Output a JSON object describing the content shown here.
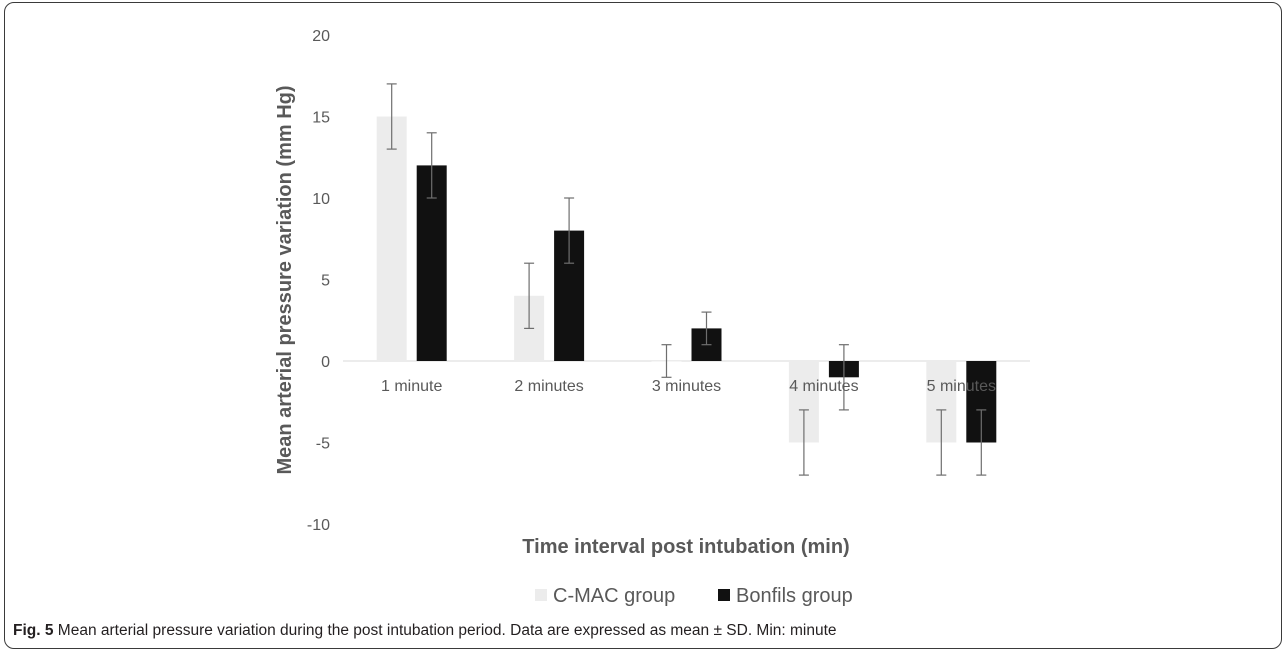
{
  "chart_data": {
    "type": "bar",
    "categories": [
      "1 minute",
      "2 minutes",
      "3 minutes",
      "4 minutes",
      "5 minutes"
    ],
    "series": [
      {
        "name": "C-MAC group",
        "values": [
          15,
          4,
          0,
          -5,
          -5
        ],
        "error": [
          2,
          2,
          1,
          2,
          2
        ]
      },
      {
        "name": "Bonfils group",
        "values": [
          12,
          8,
          2,
          -1,
          -5
        ],
        "error": [
          2,
          2,
          1,
          2,
          2
        ]
      }
    ],
    "colors": [
      "#ececec",
      "#111111"
    ],
    "error_bar_color": "#6e6e6e",
    "xlabel": "Time interval post intubation (min)",
    "ylabel": "Mean arterial pressure variation (mm Hg)",
    "ylim": [
      -10,
      20
    ],
    "yticks": [
      20,
      15,
      10,
      5,
      0,
      -5,
      -10
    ],
    "grid": false,
    "legend_position": "bottom"
  },
  "caption": {
    "label": "Fig. 5",
    "text": " Mean arterial pressure variation during the post intubation period. Data are expressed as mean ± SD. Min: minute"
  }
}
